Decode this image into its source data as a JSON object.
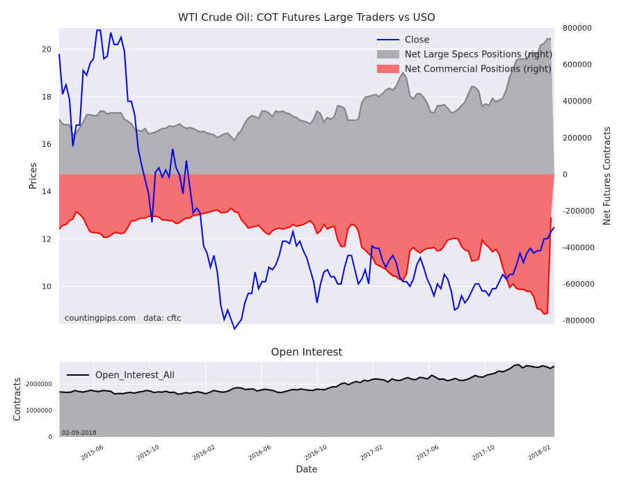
{
  "chart_data": [
    {
      "type": "line",
      "title": "WTI Crude Oil: COT Futures Large Traders vs USO",
      "ylabel": "Prices",
      "y2label": "Net Futures Contracts",
      "watermark": "countingpips.com   data: cftc",
      "ylim": [
        8.4,
        20.9
      ],
      "y2lim": [
        -820000,
        800000
      ],
      "y_ticks": [
        "10",
        "12",
        "14",
        "16",
        "18",
        "20"
      ],
      "y2_ticks": [
        "-800000",
        "-600000",
        "-400000",
        "-200000",
        "0",
        "200000",
        "400000",
        "600000",
        "800000"
      ],
      "legend_position": "top-right",
      "legend": [
        "Close",
        "Net Large Specs Positions (right)",
        "Net Commercial Positions (right)"
      ],
      "colors": {
        "close": "#0000ee",
        "specs_line": "#808080",
        "specs_fill": "#adadb2",
        "comm_line": "#ff0000",
        "comm_fill": "#f47172"
      },
      "series": [
        {
          "name": "Close",
          "axis": "left",
          "values": [
            19.8,
            18.1,
            18.5,
            17.9,
            15.9,
            16.8,
            16.8,
            19.1,
            18.9,
            19.4,
            19.6,
            20.8,
            20.8,
            19.6,
            19.7,
            20.7,
            20.2,
            20.2,
            20.5,
            19.9,
            17.8,
            17.8,
            17.2,
            15.8,
            15.1,
            14.5,
            13.9,
            12.7,
            14.8,
            15.0,
            14.6,
            14.9,
            14.6,
            15.8,
            15.0,
            14.7,
            13.9,
            15.3,
            14.2,
            13.1,
            13.3,
            13.1,
            11.7,
            11.4,
            10.8,
            11.3,
            10.6,
            9.2,
            8.6,
            9.0,
            8.6,
            8.2,
            8.4,
            8.6,
            9.3,
            9.7,
            9.7,
            10.6,
            9.9,
            10.2,
            10.2,
            10.8,
            10.7,
            10.9,
            11.3,
            11.9,
            11.9,
            11.8,
            12.3,
            11.7,
            11.9,
            11.5,
            11.2,
            10.7,
            10.2,
            9.3,
            10.1,
            10.6,
            10.7,
            10.4,
            10.4,
            10.1,
            10.1,
            10.8,
            11.3,
            11.3,
            10.7,
            10.1,
            10.3,
            10.7,
            10.1,
            11.7,
            11.6,
            11.6,
            11.1,
            10.8,
            11.1,
            11.3,
            11.0,
            10.4,
            10.2,
            10.2,
            10.0,
            10.3,
            10.9,
            11.2,
            10.8,
            10.3,
            10.0,
            9.6,
            10.1,
            9.9,
            10.5,
            10.3,
            9.8,
            9.0,
            9.1,
            9.6,
            9.3,
            9.5,
            9.8,
            10.1,
            10.1,
            9.8,
            9.8,
            9.6,
            9.9,
            9.9,
            10.2,
            10.5,
            10.3,
            10.5,
            10.5,
            10.9,
            11.4,
            11.0,
            11.4,
            11.6,
            11.4,
            11.5,
            11.5,
            12.0,
            12.0,
            12.3,
            12.5
          ]
        },
        {
          "name": "Net Large Specs Positions (right)",
          "axis": "right",
          "values": [
            300000,
            275000,
            270000,
            270000,
            215000,
            225000,
            255000,
            285000,
            325000,
            325000,
            320000,
            320000,
            345000,
            345000,
            330000,
            335000,
            335000,
            335000,
            335000,
            300000,
            290000,
            275000,
            245000,
            240000,
            235000,
            250000,
            220000,
            225000,
            230000,
            240000,
            250000,
            250000,
            265000,
            260000,
            265000,
            275000,
            260000,
            250000,
            255000,
            250000,
            240000,
            230000,
            235000,
            225000,
            220000,
            215000,
            200000,
            210000,
            220000,
            225000,
            205000,
            185000,
            220000,
            240000,
            280000,
            305000,
            320000,
            315000,
            305000,
            345000,
            345000,
            335000,
            315000,
            345000,
            340000,
            345000,
            335000,
            330000,
            315000,
            310000,
            295000,
            290000,
            285000,
            275000,
            300000,
            345000,
            330000,
            285000,
            310000,
            300000,
            315000,
            375000,
            370000,
            360000,
            295000,
            295000,
            295000,
            300000,
            390000,
            420000,
            425000,
            430000,
            435000,
            425000,
            440000,
            460000,
            470000,
            460000,
            480000,
            525000,
            555000,
            525000,
            430000,
            410000,
            440000,
            440000,
            420000,
            390000,
            340000,
            335000,
            375000,
            375000,
            380000,
            360000,
            335000,
            340000,
            355000,
            375000,
            395000,
            440000,
            480000,
            475000,
            455000,
            370000,
            385000,
            375000,
            415000,
            395000,
            405000,
            415000,
            460000,
            530000,
            575000,
            625000,
            630000,
            630000,
            630000,
            660000,
            665000,
            655000,
            705000,
            715000,
            740000,
            740000
          ]
        },
        {
          "name": "Net Commercial Positions (right)",
          "axis": "right",
          "values": [
            -300000,
            -280000,
            -275000,
            -255000,
            -245000,
            -205000,
            -220000,
            -240000,
            -280000,
            -315000,
            -320000,
            -320000,
            -325000,
            -345000,
            -345000,
            -335000,
            -320000,
            -320000,
            -325000,
            -320000,
            -290000,
            -255000,
            -255000,
            -245000,
            -240000,
            -240000,
            -230000,
            -230000,
            -230000,
            -235000,
            -250000,
            -250000,
            -255000,
            -255000,
            -270000,
            -265000,
            -250000,
            -240000,
            -240000,
            -225000,
            -225000,
            -220000,
            -215000,
            -210000,
            -205000,
            -200000,
            -195000,
            -210000,
            -210000,
            -205000,
            -185000,
            -205000,
            -210000,
            -250000,
            -270000,
            -295000,
            -290000,
            -285000,
            -280000,
            -300000,
            -320000,
            -330000,
            -310000,
            -300000,
            -295000,
            -300000,
            -295000,
            -290000,
            -275000,
            -285000,
            -280000,
            -275000,
            -265000,
            -255000,
            -275000,
            -325000,
            -310000,
            -275000,
            -300000,
            -290000,
            -285000,
            -360000,
            -395000,
            -395000,
            -300000,
            -275000,
            -280000,
            -310000,
            -400000,
            -415000,
            -435000,
            -450000,
            -490000,
            -500000,
            -510000,
            -520000,
            -540000,
            -555000,
            -560000,
            -575000,
            -580000,
            -545000,
            -420000,
            -400000,
            -420000,
            -430000,
            -415000,
            -405000,
            -405000,
            -400000,
            -420000,
            -415000,
            -390000,
            -360000,
            -355000,
            -350000,
            -355000,
            -395000,
            -415000,
            -420000,
            -475000,
            -470000,
            -465000,
            -360000,
            -385000,
            -400000,
            -425000,
            -410000,
            -440000,
            -510000,
            -565000,
            -620000,
            -600000,
            -625000,
            -630000,
            -630000,
            -640000,
            -640000,
            -670000,
            -735000,
            -740000,
            -765000,
            -760000,
            -235000
          ]
        }
      ]
    },
    {
      "type": "area",
      "title": "Open Interest",
      "ylabel": "Contracts",
      "xlabel": "Date",
      "date_label": "02-09-2018",
      "ylim": [
        0,
        2850000
      ],
      "y_ticks": [
        "0",
        "1000000",
        "2000000"
      ],
      "legend_position": "top-left",
      "legend": [
        "Open_Interest_All"
      ],
      "x_ticks": [
        "2015-06",
        "2015-10",
        "2016-02",
        "2016-06",
        "2016-10",
        "2017-02",
        "2017-06",
        "2017-10",
        "2018-02"
      ],
      "colors": {
        "line": "#000000",
        "fill": "#b0b0b4"
      },
      "series": [
        {
          "name": "Open_Interest_All",
          "values": [
            1710000,
            1700000,
            1690000,
            1700000,
            1760000,
            1720000,
            1700000,
            1730000,
            1770000,
            1740000,
            1720000,
            1760000,
            1750000,
            1730000,
            1630000,
            1650000,
            1640000,
            1670000,
            1690000,
            1660000,
            1700000,
            1720000,
            1760000,
            1740000,
            1680000,
            1710000,
            1700000,
            1730000,
            1680000,
            1700000,
            1620000,
            1640000,
            1680000,
            1650000,
            1690000,
            1710000,
            1680000,
            1640000,
            1690000,
            1760000,
            1730000,
            1700000,
            1710000,
            1760000,
            1840000,
            1870000,
            1850000,
            1800000,
            1810000,
            1820000,
            1740000,
            1780000,
            1810000,
            1780000,
            1760000,
            1700000,
            1680000,
            1720000,
            1760000,
            1800000,
            1780000,
            1820000,
            1790000,
            1770000,
            1760000,
            1810000,
            1800000,
            1790000,
            1850000,
            1900000,
            1900000,
            2000000,
            2050000,
            1980000,
            2050000,
            2100000,
            2060000,
            2150000,
            2120000,
            2180000,
            2200000,
            2180000,
            2160000,
            2080000,
            2200000,
            2150000,
            2140000,
            2200000,
            2250000,
            2190000,
            2170000,
            2260000,
            2240000,
            2200000,
            2340000,
            2270000,
            2180000,
            2200000,
            2130000,
            2170000,
            2220000,
            2150000,
            2140000,
            2180000,
            2250000,
            2330000,
            2280000,
            2270000,
            2350000,
            2380000,
            2420000,
            2500000,
            2470000,
            2530000,
            2610000,
            2720000,
            2740000,
            2620000,
            2700000,
            2680000,
            2650000,
            2640000,
            2700000,
            2660000,
            2600000,
            2680000
          ]
        }
      ]
    }
  ]
}
